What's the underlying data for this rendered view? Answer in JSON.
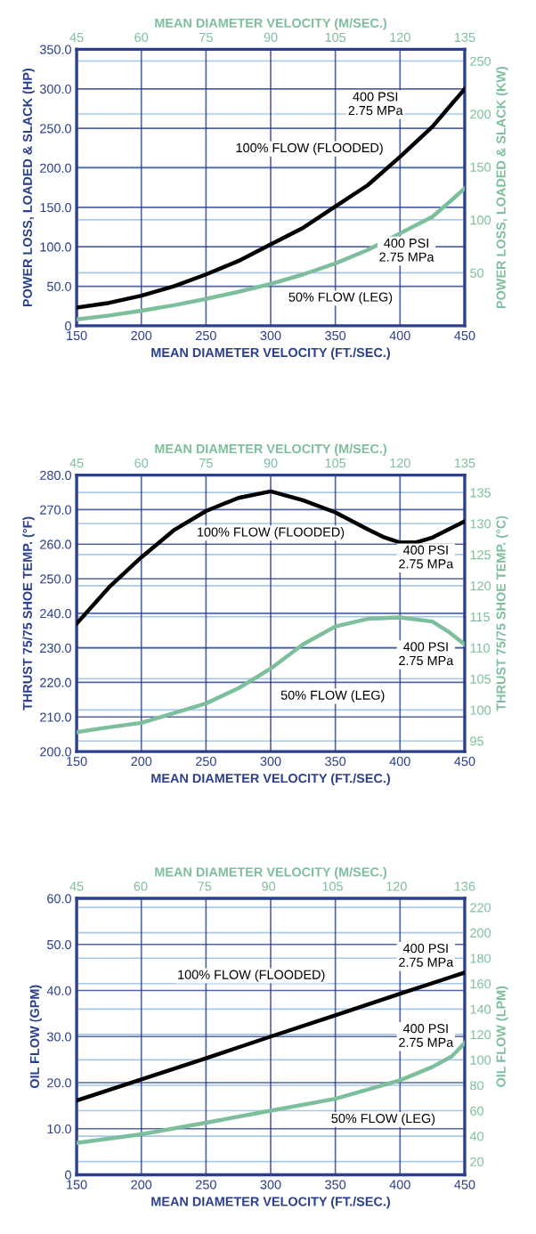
{
  "chart_data": [
    {
      "type": "line",
      "xlabel": "MEAN DIAMETER VELOCITY (FT./SEC.)",
      "x2label": "MEAN DIAMETER VELOCITY (M/SEC.)",
      "ylabel": "POWER LOSS, LOADED & SLACK (HP)",
      "y2label": "POWER LOSS, LOADED & SLACK (KW)",
      "xlim": [
        150,
        450
      ],
      "xticks": [
        150,
        200,
        250,
        300,
        350,
        400,
        450
      ],
      "x2lim": [
        45,
        135
      ],
      "x2ticks": [
        45,
        60,
        75,
        90,
        105,
        120,
        135
      ],
      "ylim": [
        0,
        350
      ],
      "yticks": [
        0,
        {
          "value": 50,
          "label": "50.0"
        },
        {
          "value": 100,
          "label": "100.0"
        },
        {
          "value": 150,
          "label": "150.0"
        },
        {
          "value": 200,
          "label": "200.0"
        },
        {
          "value": 250,
          "label": "250.0"
        },
        {
          "value": 300,
          "label": "300.0"
        },
        {
          "value": 350,
          "label": "350.0"
        }
      ],
      "y2lim": [
        0,
        261
      ],
      "y2ticks": [
        50,
        100,
        150,
        200,
        250
      ],
      "grid": true,
      "series": [
        {
          "color": "#000000",
          "x": [
            150,
            175,
            200,
            225,
            250,
            275,
            300,
            325,
            350,
            375,
            400,
            425,
            450
          ],
          "values": [
            23,
            29,
            38,
            50,
            65,
            82,
            103,
            124,
            151,
            178,
            214,
            252,
            300
          ]
        },
        {
          "color": "#7dbf9c",
          "x": [
            150,
            175,
            200,
            225,
            250,
            275,
            300,
            325,
            350,
            375,
            400,
            425,
            437,
            450
          ],
          "values": [
            8,
            13,
            19,
            26,
            34,
            43,
            53,
            65,
            79,
            96,
            117,
            138,
            155,
            174
          ]
        }
      ],
      "annotations": [
        "400 PSI\n2.75 MPa",
        "100% FLOW (FLOODED)",
        "400 PSI\n2.75 MPa",
        "50% FLOW (LEG)"
      ]
    },
    {
      "type": "line",
      "xlabel": "MEAN DIAMETER VELOCITY (FT./SEC.)",
      "x2label": "MEAN DIAMETER VELOCITY (M/SEC.)",
      "ylabel": "THRUST 75/75 SHOE TEMP. (°F)",
      "y2label": "THRUST 75/75 SHOE TEMP. (°C)",
      "xlim": [
        150,
        450
      ],
      "xticks": [
        150,
        200,
        250,
        300,
        350,
        400,
        450
      ],
      "x2lim": [
        45,
        135
      ],
      "x2ticks": [
        45,
        60,
        75,
        90,
        105,
        120,
        135
      ],
      "ylim": [
        200,
        280
      ],
      "yticks": [
        {
          "value": 200,
          "label": "200.0"
        },
        {
          "value": 210,
          "label": "210.0"
        },
        {
          "value": 220,
          "label": "220.0"
        },
        {
          "value": 230,
          "label": "230.0"
        },
        {
          "value": 240,
          "label": "240.0"
        },
        {
          "value": 250,
          "label": "250.0"
        },
        {
          "value": 260,
          "label": "260.0"
        },
        {
          "value": 270,
          "label": "270.0"
        },
        {
          "value": 280,
          "label": "280.0"
        }
      ],
      "y2lim": [
        93.3,
        137.8
      ],
      "y2ticks": [
        95,
        100,
        105,
        110,
        115,
        120,
        125,
        130,
        135
      ],
      "grid": true,
      "series": [
        {
          "color": "#000000",
          "x": [
            150,
            175,
            200,
            225,
            250,
            275,
            300,
            325,
            350,
            375,
            387,
            400,
            412,
            425,
            450
          ],
          "values": [
            237.0,
            247.5,
            256.2,
            264.0,
            269.6,
            273.4,
            275.3,
            272.7,
            269.2,
            264.3,
            262.1,
            260.5,
            260.5,
            261.9,
            266.6
          ]
        },
        {
          "color": "#7dbf9c",
          "x": [
            150,
            175,
            200,
            250,
            275,
            300,
            325,
            350,
            375,
            400,
            425,
            437,
            450
          ],
          "values": [
            205.6,
            207.0,
            208.3,
            213.9,
            218.3,
            224.0,
            231.0,
            236.2,
            238.4,
            238.8,
            237.6,
            234.8,
            231.0
          ]
        }
      ],
      "annotations": [
        "100% FLOW (FLOODED)",
        "400 PSI\n2.75 MPa",
        "400 PSI\n2.75 MPa",
        "50% FLOW (LEG)"
      ]
    },
    {
      "type": "line",
      "xlabel": "MEAN DIAMETER VELOCITY (FT./SEC.)",
      "x2label": "MEAN DIAMETER VELOCITY (M/SEC.)",
      "ylabel": "OIL FLOW (GPM)",
      "y2label": "OIL FLOW (LPM)",
      "xlim": [
        150,
        450
      ],
      "xticks": [
        150,
        200,
        250,
        300,
        350,
        400,
        450
      ],
      "x2lim": [
        45,
        136
      ],
      "x2ticks": [
        45,
        60,
        75,
        90,
        105,
        120,
        136
      ],
      "ylim": [
        0,
        60
      ],
      "yticks": [
        0,
        {
          "value": 10,
          "label": "10.0"
        },
        {
          "value": 20,
          "label": "20.0"
        },
        {
          "value": 30,
          "label": "30.0"
        },
        {
          "value": 40,
          "label": "40.0"
        },
        {
          "value": 50,
          "label": "50.0"
        },
        {
          "value": 60,
          "label": "60.0"
        }
      ],
      "y2lim": [
        9.6,
        227.1
      ],
      "y2ticks": [
        20,
        40,
        60,
        80,
        100,
        120,
        140,
        160,
        180,
        200,
        220
      ],
      "grid": true,
      "series": [
        {
          "color": "#000000",
          "x": [
            150,
            200,
            250,
            300,
            350,
            400,
            450
          ],
          "values": [
            16.1,
            20.7,
            25.3,
            30.0,
            34.6,
            39.3,
            43.9
          ]
        },
        {
          "color": "#7dbf9c",
          "x": [
            150,
            200,
            250,
            300,
            350,
            400,
            425,
            440,
            450
          ],
          "values": [
            6.9,
            8.8,
            11.3,
            13.9,
            16.5,
            20.5,
            23.4,
            25.7,
            28.6
          ]
        }
      ],
      "annotations": [
        "100% FLOW (FLOODED)",
        "400 PSI\n2.75 MPa",
        "400 PSI\n2.75 MPa",
        "50% FLOW (LEG)"
      ]
    }
  ]
}
